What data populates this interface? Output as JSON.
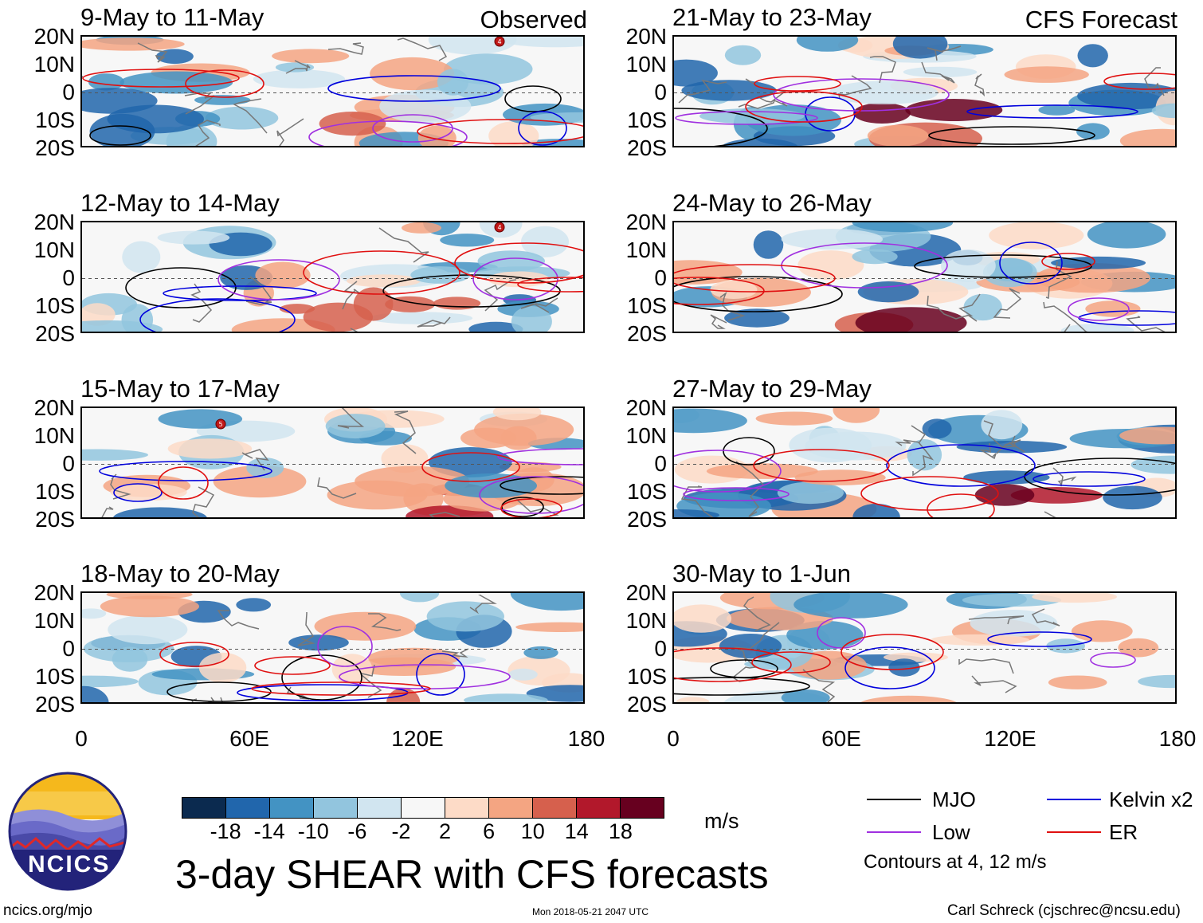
{
  "figure": {
    "main_title": "3-day SHEAR with CFS forecasts",
    "units": "m/s",
    "contour_note": "Contours at 4, 12 m/s",
    "website": "ncics.org/mjo",
    "timestamp": "Mon 2018-05-21 2047 UTC",
    "author": "Carl Schreck (cjschrec@ncsu.edu)",
    "logo_text": "NCICS"
  },
  "column_tags": {
    "left": "Observed",
    "right": "CFS Forecast"
  },
  "lat_labels": [
    "20N",
    "10N",
    "0",
    "10S",
    "20S"
  ],
  "lon_labels": [
    "0",
    "60E",
    "120E",
    "180"
  ],
  "panels": [
    {
      "title": "9-May to 11-May",
      "column": "left",
      "row": 0
    },
    {
      "title": "12-May to 14-May",
      "column": "left",
      "row": 1
    },
    {
      "title": "15-May to 17-May",
      "column": "left",
      "row": 2
    },
    {
      "title": "18-May to 20-May",
      "column": "left",
      "row": 3
    },
    {
      "title": "21-May to 23-May",
      "column": "right",
      "row": 0
    },
    {
      "title": "24-May to 26-May",
      "column": "right",
      "row": 1
    },
    {
      "title": "27-May to 29-May",
      "column": "right",
      "row": 2
    },
    {
      "title": "30-May to 1-Jun",
      "column": "right",
      "row": 3
    }
  ],
  "colorbar": {
    "tick_labels": [
      "-18",
      "-14",
      "-10",
      "-6",
      "-2",
      "2",
      "6",
      "10",
      "14",
      "18"
    ],
    "colors": [
      "#0b2a4f",
      "#2166ac",
      "#4393c3",
      "#92c5de",
      "#d1e5f0",
      "#f7f7f7",
      "#fddbc7",
      "#f4a582",
      "#d6604d",
      "#b2182b",
      "#67001f"
    ]
  },
  "legend": [
    {
      "label": "MJO",
      "color": "#000000"
    },
    {
      "label": "Kelvin x2",
      "color": "#0000dd"
    },
    {
      "label": "Low",
      "color": "#a030e0"
    },
    {
      "label": "ER",
      "color": "#e01010"
    }
  ],
  "storm_markers": [
    {
      "panel": 0,
      "label": "4"
    },
    {
      "panel": 1,
      "label": "4"
    },
    {
      "panel": 2,
      "label": "5"
    }
  ]
}
